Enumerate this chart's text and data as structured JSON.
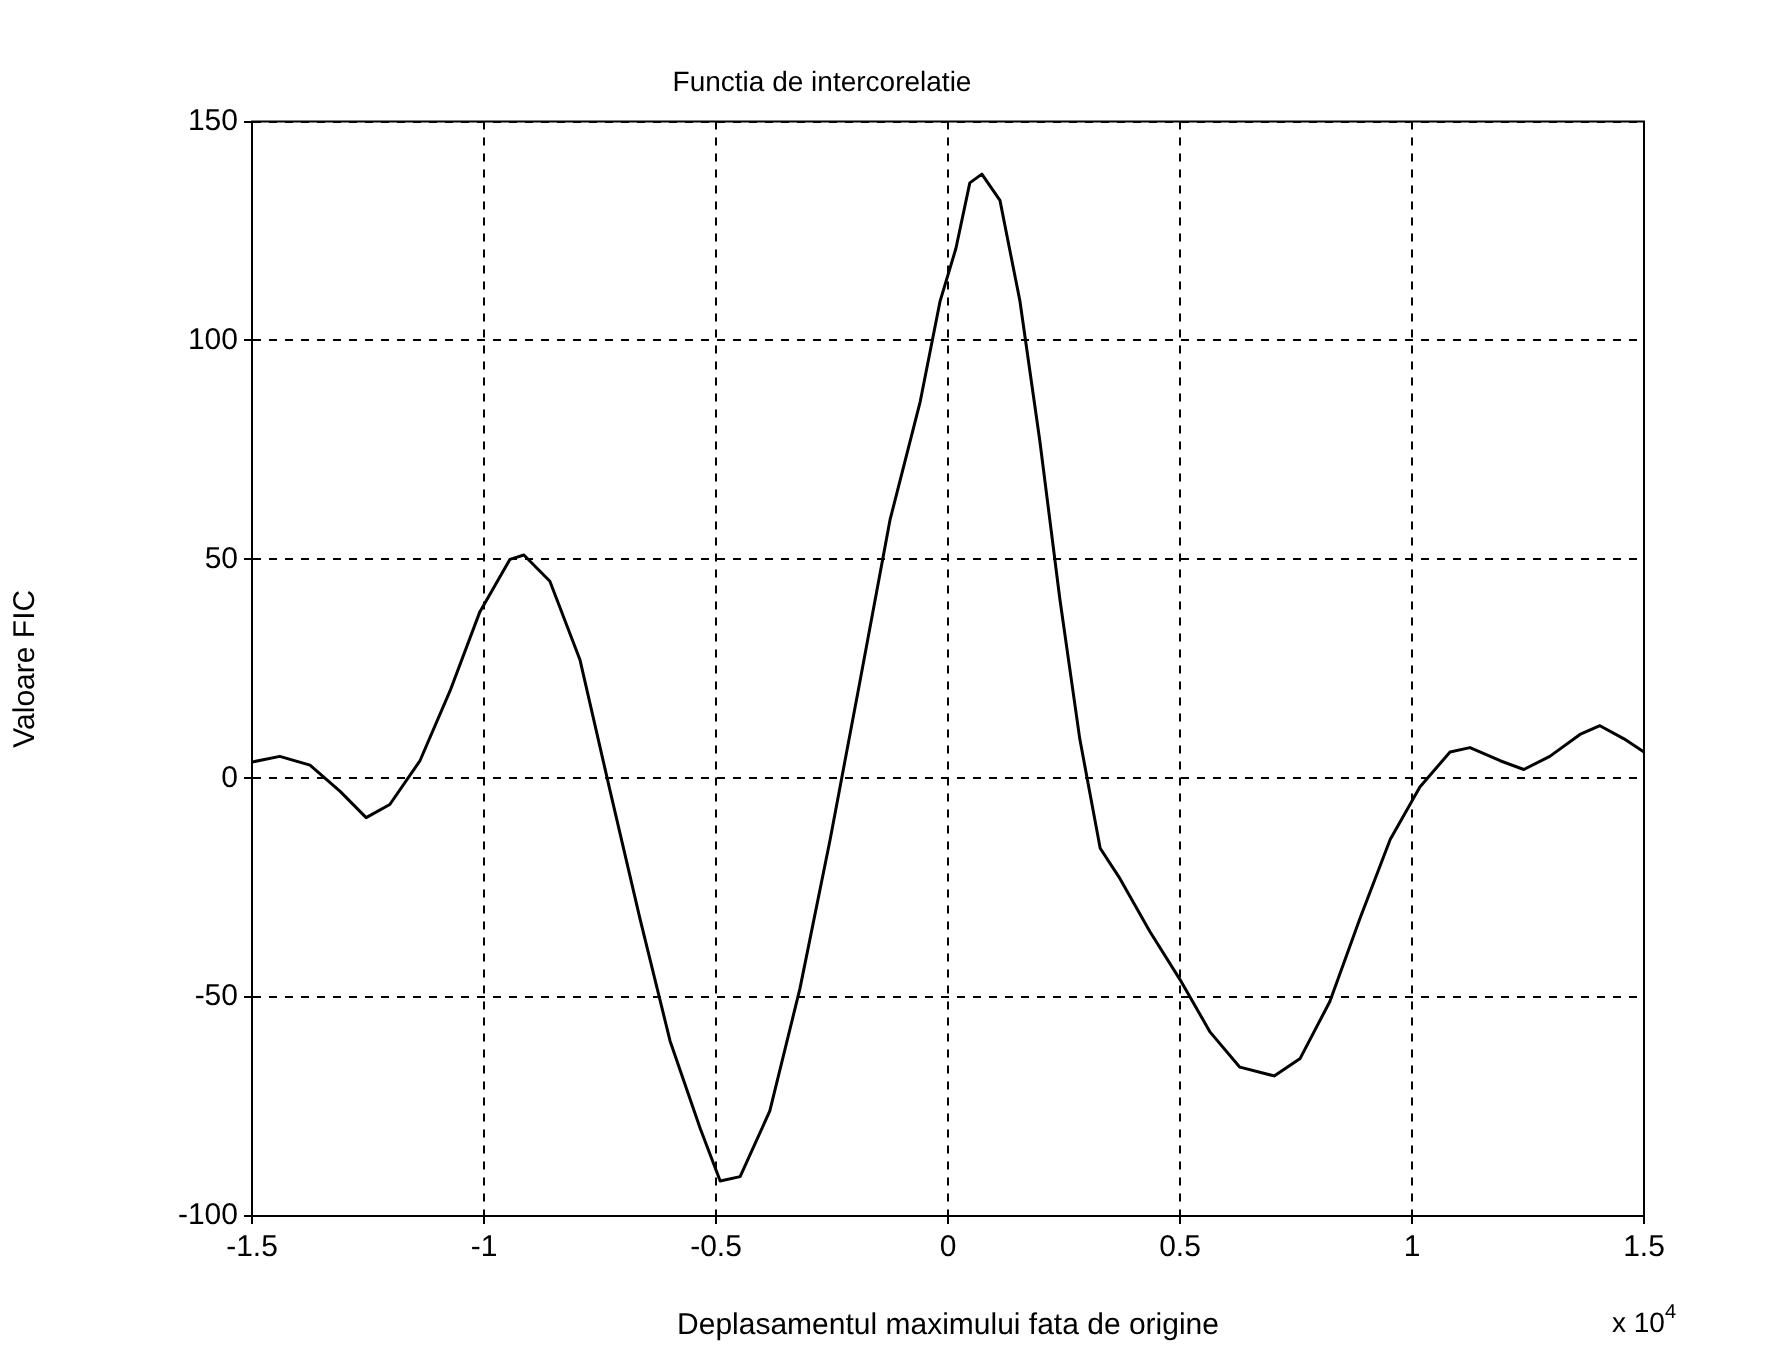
{
  "chart_data": {
    "type": "line",
    "title": "Functia de intercorelatie",
    "xlabel": "Deplasamentul maximului fata de origine",
    "ylabel": "Valoare FIC",
    "annotations": [
      "x 10$^{4}$"
    ],
    "x": [
      -1.5,
      -1.44,
      -1.375,
      -1.31,
      -1.254,
      -1.203,
      -1.138,
      -1.073,
      -1.009,
      -0.944,
      -0.914,
      -0.858,
      -0.793,
      -0.728,
      -0.664,
      -0.599,
      -0.534,
      -0.491,
      -0.448,
      -0.384,
      -0.319,
      -0.254,
      -0.19,
      -0.125,
      -0.06,
      -0.017,
      0.017,
      0.047,
      0.073,
      0.112,
      0.155,
      0.198,
      0.241,
      0.284,
      0.328,
      0.371,
      0.435,
      0.5,
      0.565,
      0.629,
      0.703,
      0.759,
      0.823,
      0.888,
      0.953,
      1.017,
      1.082,
      1.125,
      1.19,
      1.241,
      1.297,
      1.362,
      1.405,
      1.457,
      1.5
    ],
    "values": [
      3.7,
      5,
      3,
      -3,
      -9,
      -6,
      4,
      20,
      38,
      50,
      51,
      45,
      27,
      -3,
      -32,
      -60,
      -80,
      -92,
      -91,
      -76,
      -48,
      -14,
      22,
      59,
      86,
      109,
      121,
      136,
      138,
      132,
      109,
      77,
      41,
      9,
      -16,
      -23,
      -35,
      -46,
      -58,
      -66,
      -68,
      -64,
      -51,
      -32,
      -14,
      -2,
      6,
      7,
      4,
      2,
      5,
      10,
      12,
      9,
      6
    ],
    "color": "#000000",
    "xlim": [
      -1.5,
      1.5
    ],
    "ylim": [
      -100,
      150
    ],
    "xticks": [
      -1.5,
      -1,
      -0.5,
      0,
      0.5,
      1,
      1.5
    ],
    "yticks": [
      -100,
      -50,
      0,
      50,
      100,
      150
    ],
    "grid": true
  }
}
